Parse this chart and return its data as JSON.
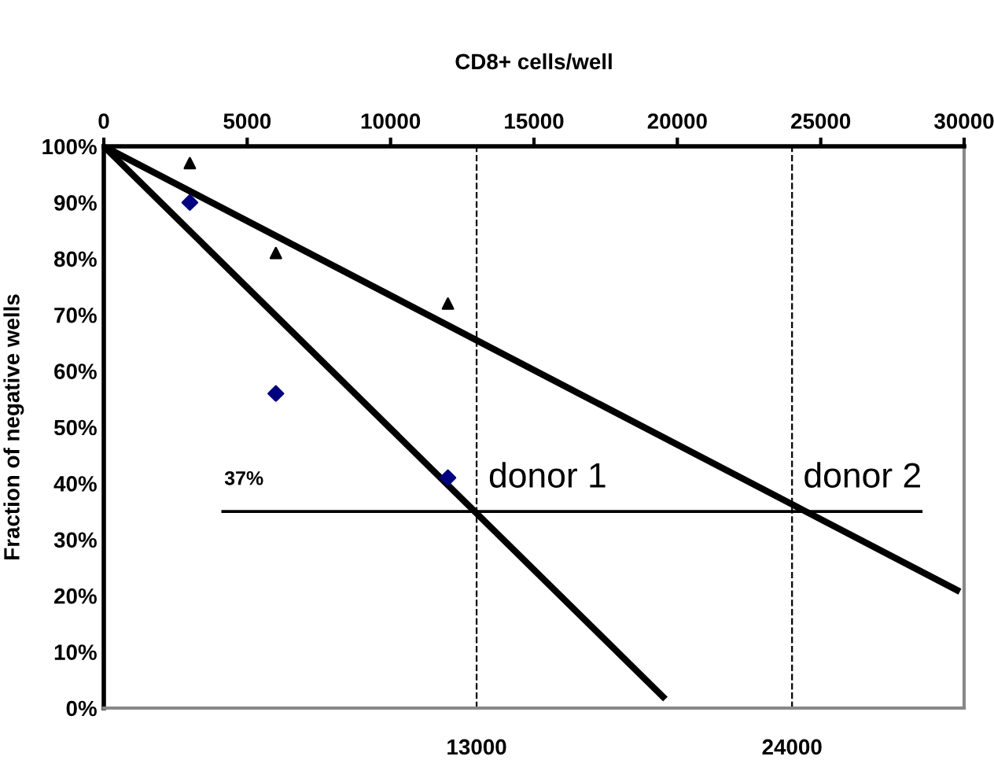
{
  "chart_data": {
    "type": "scatter",
    "xlabel": "CD8+ cells/well",
    "ylabel": "Fraction of negative wells",
    "xlim": [
      0,
      30000
    ],
    "xticks": [
      0,
      5000,
      10000,
      15000,
      20000,
      25000,
      30000
    ],
    "ylim": [
      0,
      100
    ],
    "yticks": [
      {
        "value": 0,
        "label": "0%"
      },
      {
        "value": 10,
        "label": "10%"
      },
      {
        "value": 20,
        "label": "20%"
      },
      {
        "value": 30,
        "label": "30%"
      },
      {
        "value": 40,
        "label": "40%"
      },
      {
        "value": 50,
        "label": "50%"
      },
      {
        "value": 60,
        "label": "60%"
      },
      {
        "value": 70,
        "label": "70%"
      },
      {
        "value": 80,
        "label": "80%"
      },
      {
        "value": 90,
        "label": "90%"
      },
      {
        "value": 100,
        "label": "100%"
      }
    ],
    "grid": false,
    "legend": false,
    "series": [
      {
        "type": "scatter",
        "marker": "diamond",
        "color": "#000080",
        "x": [
          3000,
          6000,
          12000
        ],
        "values": [
          90,
          56,
          41
        ]
      },
      {
        "type": "scatter",
        "marker": "triangle",
        "color": "#000000",
        "x": [
          3000,
          6000,
          12000
        ],
        "values": [
          97,
          81,
          72
        ]
      },
      {
        "type": "line",
        "marker": "none",
        "color": "#000000",
        "x": [
          0,
          19500
        ],
        "values": [
          100,
          2
        ]
      },
      {
        "type": "line",
        "marker": "none",
        "color": "#000000",
        "x": [
          0,
          29750
        ],
        "values": [
          100,
          21
        ]
      },
      {
        "type": "line",
        "marker": "none",
        "color": "#000000",
        "x": [
          4150,
          28500
        ],
        "values": [
          35,
          35
        ]
      }
    ],
    "ref_lines": [
      {
        "axis": "x",
        "value": 13000,
        "label": "13000",
        "line_style": "dashed",
        "color": "#000000"
      },
      {
        "axis": "x",
        "value": 24000,
        "label": "24000",
        "line_style": "dashed",
        "color": "#000000"
      }
    ],
    "annotations": [
      "37%",
      "donor 1",
      "donor 2"
    ]
  }
}
